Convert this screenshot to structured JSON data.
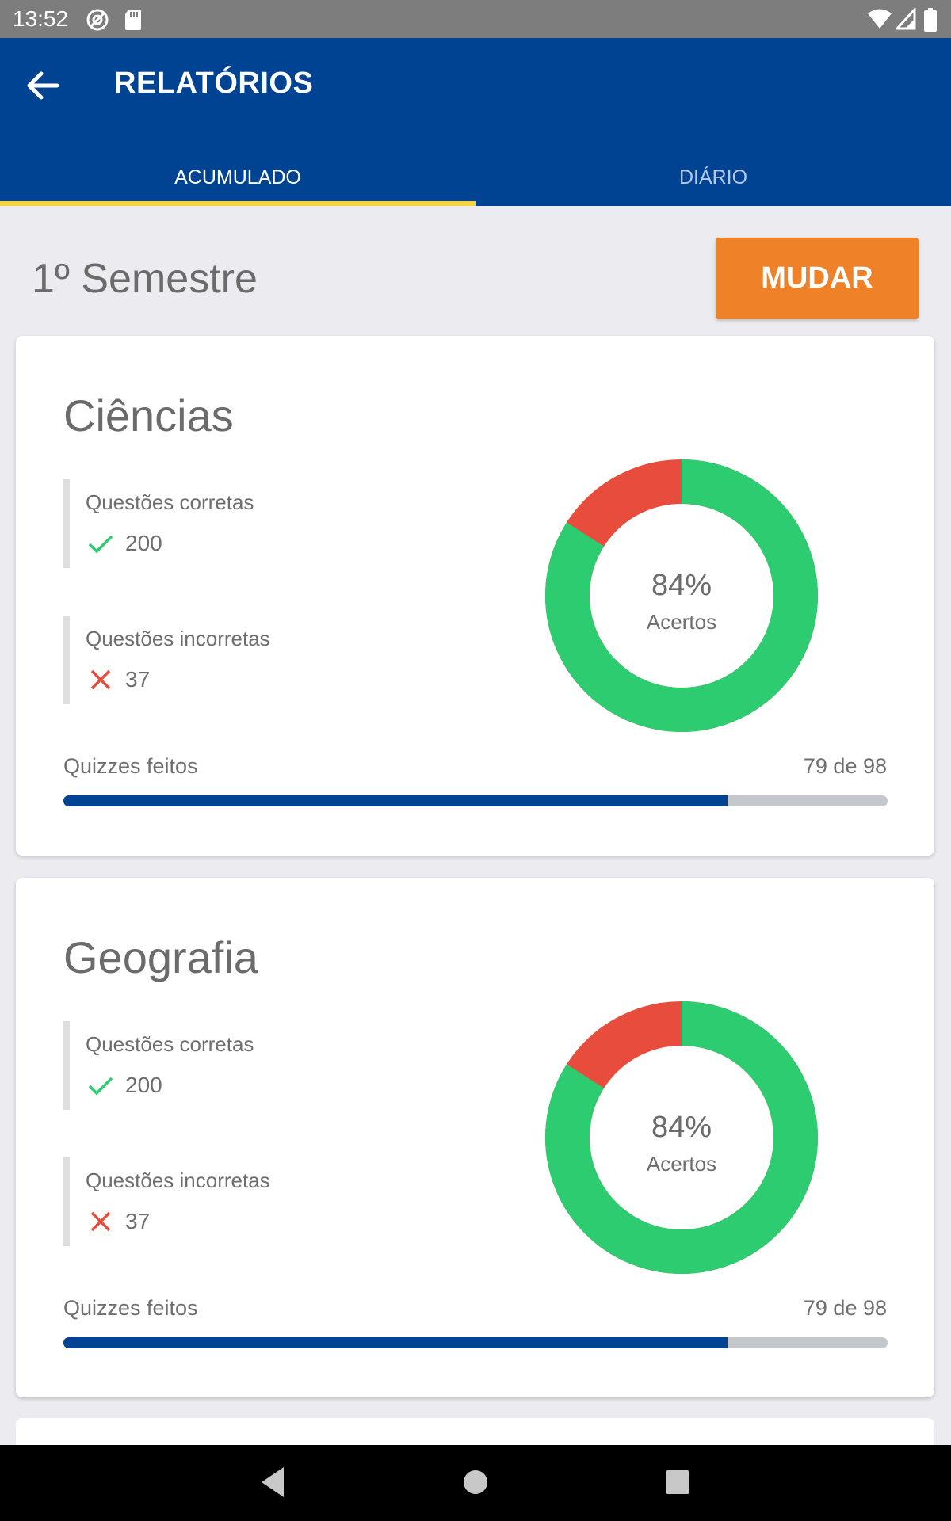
{
  "status_bar": {
    "time": "13:52",
    "left_icons": [
      "at-sign-icon",
      "sd-card-icon"
    ],
    "right_icons": [
      "wifi-icon",
      "signal-icon",
      "battery-icon"
    ]
  },
  "app_bar": {
    "back_icon": "arrow-back-icon",
    "title": "RELATÓRIOS",
    "background": "#004392"
  },
  "tabs": [
    {
      "label": "ACUMULADO",
      "active": true
    },
    {
      "label": "DIÁRIO",
      "active": false
    }
  ],
  "semester": {
    "label": "1º Semestre",
    "change_button": "MUDAR",
    "button_color": "#ef8228"
  },
  "subjects": [
    {
      "name": "Ciências",
      "correct_label": "Questões corretas",
      "correct_value": "200",
      "incorrect_label": "Questões incorretas",
      "incorrect_value": "37",
      "donut_percent": "84%",
      "donut_caption": "Acertos",
      "correct_fraction": 0.84,
      "quizzes_label": "Quizzes feitos",
      "quizzes_count": "79 de 98",
      "quizzes_done": 79,
      "quizzes_total": 98
    },
    {
      "name": "Geografia",
      "correct_label": "Questões corretas",
      "correct_value": "200",
      "incorrect_label": "Questões incorretas",
      "incorrect_value": "37",
      "donut_percent": "84%",
      "donut_caption": "Acertos",
      "correct_fraction": 0.84,
      "quizzes_label": "Quizzes feitos",
      "quizzes_count": "79 de 98",
      "quizzes_done": 79,
      "quizzes_total": 98
    }
  ],
  "colors": {
    "correct": "#2ecc71",
    "incorrect": "#e74c3c",
    "progress": "#004392",
    "track": "#c4c7cc"
  },
  "nav_bar": {
    "buttons": [
      "back-triangle-icon",
      "home-circle-icon",
      "recents-square-icon"
    ]
  }
}
